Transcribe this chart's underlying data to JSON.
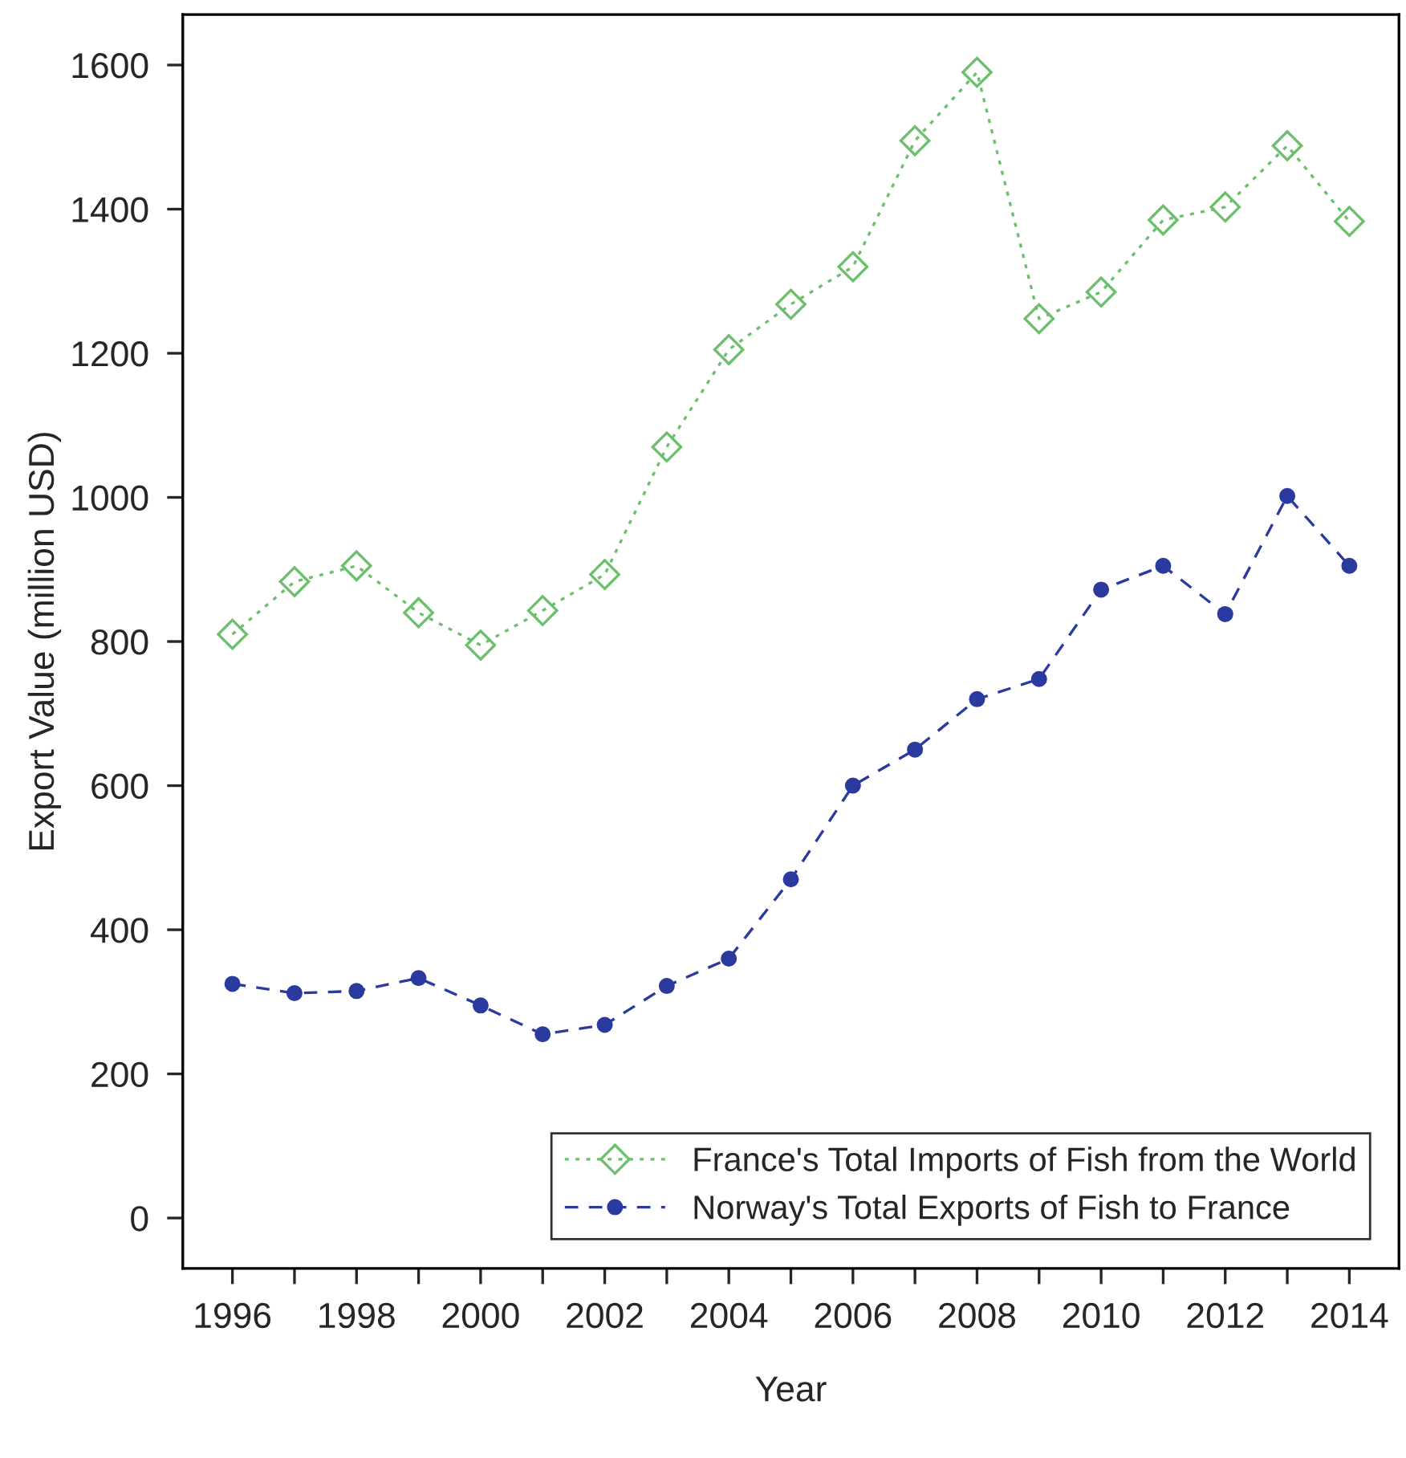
{
  "chart_data": {
    "type": "line",
    "xlabel": "Year",
    "ylabel": "Export Value (million USD)",
    "x": [
      1996,
      1997,
      1998,
      1999,
      2000,
      2001,
      2002,
      2003,
      2004,
      2005,
      2006,
      2007,
      2008,
      2009,
      2010,
      2011,
      2012,
      2013,
      2014
    ],
    "series": [
      {
        "name": "France's Total Imports of Fish from the World",
        "color": "#6cbf6c",
        "marker": "diamond",
        "line_style": "dotted",
        "values": [
          810,
          883,
          905,
          840,
          795,
          843,
          893,
          1070,
          1205,
          1268,
          1320,
          1495,
          1590,
          1248,
          1285,
          1385,
          1403,
          1488,
          1383
        ]
      },
      {
        "name": "Norway's Total Exports of Fish to France",
        "color": "#2b3a9e",
        "marker": "circle",
        "line_style": "dashed",
        "values": [
          325,
          312,
          315,
          333,
          295,
          255,
          268,
          322,
          360,
          470,
          600,
          650,
          720,
          748,
          872,
          905,
          838,
          1002,
          905
        ]
      }
    ],
    "xlim": [
      1995.2,
      2014.8
    ],
    "ylim": [
      -70,
      1670
    ],
    "xticks": [
      1996,
      {
        "value": 1997,
        "label": null
      },
      1998,
      {
        "value": 1999,
        "label": null
      },
      2000,
      {
        "value": 2001,
        "label": null
      },
      2002,
      {
        "value": 2003,
        "label": null
      },
      2004,
      {
        "value": 2005,
        "label": null
      },
      2006,
      {
        "value": 2007,
        "label": null
      },
      2008,
      {
        "value": 2009,
        "label": null
      },
      2010,
      {
        "value": 2011,
        "label": null
      },
      2012,
      {
        "value": 2013,
        "label": null
      },
      2014
    ],
    "yticks": [
      0,
      200,
      400,
      600,
      800,
      1000,
      1200,
      1400,
      1600
    ],
    "grid": false,
    "legend": "bottom right"
  }
}
